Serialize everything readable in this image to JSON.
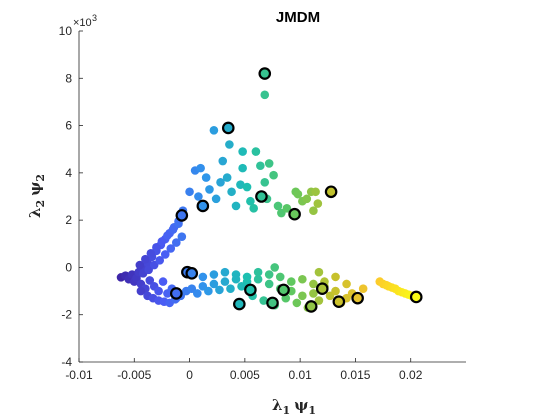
{
  "chart_data": {
    "type": "scatter",
    "title": "JMDM",
    "xlabel": "λ₁ ψ₁",
    "ylabel": "λ₂ ψ₂",
    "xlabel_parts": [
      "λ",
      "1",
      "ψ",
      "1"
    ],
    "ylabel_parts": [
      "λ",
      "2",
      "ψ",
      "2"
    ],
    "y_exponent_label": "×10",
    "y_exponent": "3",
    "xlim": [
      -0.01,
      0.025
    ],
    "ylim": [
      -4,
      10
    ],
    "xticks": [
      -0.01,
      -0.005,
      0,
      0.005,
      0.01,
      0.015,
      0.02
    ],
    "xtick_labels": [
      "-0.01",
      "-0.005",
      "0",
      "0.005",
      "0.01",
      "0.015",
      "0.02"
    ],
    "yticks": [
      -4,
      -2,
      0,
      2,
      4,
      6,
      8,
      10
    ],
    "ytick_labels": [
      "-4",
      "-2",
      "0",
      "2",
      "4",
      "6",
      "8",
      "10"
    ],
    "grid": false,
    "colormap": [
      "#3e26a8",
      "#4a5cf4",
      "#2f95eb",
      "#1dbfb0",
      "#5cc861",
      "#c2c12c",
      "#fdc52e",
      "#f9fb15"
    ],
    "points": [
      [
        -0.0062,
        -0.42
      ],
      [
        -0.0058,
        -0.35
      ],
      [
        -0.0055,
        -0.5
      ],
      [
        -0.0052,
        -0.3
      ],
      [
        -0.005,
        -0.6
      ],
      [
        -0.0048,
        -0.45
      ],
      [
        -0.0046,
        -0.2
      ],
      [
        -0.0044,
        -0.7
      ],
      [
        -0.0042,
        0.0
      ],
      [
        -0.004,
        -0.9
      ],
      [
        -0.0038,
        0.2
      ],
      [
        -0.0036,
        -0.55
      ],
      [
        -0.0034,
        0.45
      ],
      [
        -0.0032,
        -0.8
      ],
      [
        -0.003,
        0.7
      ],
      [
        -0.0028,
        -1.0
      ],
      [
        -0.0026,
        0.95
      ],
      [
        -0.0024,
        -0.6
      ],
      [
        -0.0022,
        1.2
      ],
      [
        -0.002,
        -1.1
      ],
      [
        -0.0018,
        1.45
      ],
      [
        -0.0016,
        -0.9
      ],
      [
        -0.0014,
        1.7
      ],
      [
        -0.0012,
        -1.3
      ],
      [
        -0.001,
        1.95
      ],
      [
        -0.0008,
        2.2
      ],
      [
        -0.0006,
        2.4
      ],
      [
        -0.0045,
        0.1
      ],
      [
        -0.004,
        0.35
      ],
      [
        -0.0035,
        0.6
      ],
      [
        -0.003,
        0.85
      ],
      [
        -0.0025,
        1.1
      ],
      [
        -0.002,
        1.35
      ],
      [
        -0.0015,
        1.6
      ],
      [
        -0.001,
        1.85
      ],
      [
        -0.0042,
        -0.25
      ],
      [
        -0.0037,
        -0.1
      ],
      [
        -0.0032,
        0.1
      ],
      [
        -0.0027,
        0.3
      ],
      [
        -0.0022,
        0.55
      ],
      [
        -0.0017,
        0.8
      ],
      [
        -0.0012,
        1.05
      ],
      [
        -0.0007,
        1.3
      ],
      [
        -0.0044,
        -1.0
      ],
      [
        -0.0038,
        -1.2
      ],
      [
        -0.0033,
        -1.3
      ],
      [
        -0.0028,
        -1.4
      ],
      [
        -0.0023,
        -1.45
      ],
      [
        -0.0018,
        -1.5
      ],
      [
        -0.0013,
        -1.35
      ],
      [
        -0.0008,
        -1.2
      ],
      [
        -0.0003,
        -1.0
      ],
      [
        0.0002,
        -0.9
      ],
      [
        0.0007,
        -1.1
      ],
      [
        0.0012,
        -0.8
      ],
      [
        0.0017,
        -1.0
      ],
      [
        0.0022,
        -0.7
      ],
      [
        0.0027,
        -0.95
      ],
      [
        0.0032,
        -0.6
      ],
      [
        0.0037,
        -0.9
      ],
      [
        0.0042,
        -0.3
      ],
      [
        0.0047,
        -0.8
      ],
      [
        0.0052,
        -0.4
      ],
      [
        0.0057,
        -1.2
      ],
      [
        0.0062,
        -0.5
      ],
      [
        0.0067,
        -1.4
      ],
      [
        0.0072,
        -0.7
      ],
      [
        0.0077,
        -1.6
      ],
      [
        0.0082,
        -0.9
      ],
      [
        0.0087,
        -1.3
      ],
      [
        0.0092,
        -1.0
      ],
      [
        0.0097,
        -1.5
      ],
      [
        0.0102,
        -1.2
      ],
      [
        0.0107,
        -1.7
      ],
      [
        0.0112,
        -1.1
      ],
      [
        0.0117,
        -1.4
      ],
      [
        0.0122,
        -0.8
      ],
      [
        0.0127,
        -1.2
      ],
      [
        0.0132,
        -1.0
      ],
      [
        0.0137,
        -1.5
      ],
      [
        0.0142,
        -1.3
      ],
      [
        0.0147,
        -1.1
      ],
      [
        0.0152,
        -1.3
      ],
      [
        0.0002,
        -0.3
      ],
      [
        0.0012,
        -0.4
      ],
      [
        0.0022,
        -0.3
      ],
      [
        0.0032,
        -0.2
      ],
      [
        0.0042,
        -0.5
      ],
      [
        0.0052,
        -0.6
      ],
      [
        0.0062,
        -0.2
      ],
      [
        0.0072,
        -0.3
      ],
      [
        0.0082,
        -0.4
      ],
      [
        0.0092,
        -0.6
      ],
      [
        0.0102,
        -0.5
      ],
      [
        0.0112,
        -0.7
      ],
      [
        0.0122,
        -0.6
      ],
      [
        0.0132,
        -0.4
      ],
      [
        0.0142,
        -0.7
      ],
      [
        0.0077,
        0.0
      ],
      [
        0.0117,
        -0.2
      ],
      [
        0.0157,
        -0.9
      ],
      [
        0.0172,
        -0.6
      ],
      [
        0.0175,
        -0.7
      ],
      [
        0.0178,
        -0.75
      ],
      [
        0.018,
        -0.8
      ],
      [
        0.0183,
        -0.85
      ],
      [
        0.0186,
        -0.9
      ],
      [
        0.0189,
        -1.0
      ],
      [
        0.0192,
        -1.05
      ],
      [
        0.0195,
        -1.1
      ],
      [
        0.0198,
        -1.15
      ],
      [
        0.0201,
        -1.2
      ],
      [
        0.0,
        3.2
      ],
      [
        0.0005,
        4.1
      ],
      [
        0.001,
        4.2
      ],
      [
        0.0015,
        3.8
      ],
      [
        0.0008,
        3.0
      ],
      [
        0.0018,
        3.3
      ],
      [
        0.0024,
        2.9
      ],
      [
        0.0028,
        3.6
      ],
      [
        0.003,
        4.5
      ],
      [
        0.0034,
        3.8
      ],
      [
        0.0038,
        3.2
      ],
      [
        0.0042,
        2.6
      ],
      [
        0.0046,
        3.5
      ],
      [
        0.0048,
        4.2
      ],
      [
        0.0052,
        3.4
      ],
      [
        0.0055,
        2.8
      ],
      [
        0.0058,
        2.5
      ],
      [
        0.006,
        4.9
      ],
      [
        0.0064,
        4.3
      ],
      [
        0.0068,
        3.6
      ],
      [
        0.007,
        2.9
      ],
      [
        0.0072,
        4.4
      ],
      [
        0.0076,
        3.9
      ],
      [
        0.008,
        2.6
      ],
      [
        0.0083,
        2.3
      ],
      [
        0.0088,
        2.5
      ],
      [
        0.0096,
        3.2
      ],
      [
        0.0098,
        3.1
      ],
      [
        0.0102,
        2.8
      ],
      [
        0.0106,
        2.9
      ],
      [
        0.011,
        3.2
      ],
      [
        0.0114,
        3.2
      ],
      [
        0.0116,
        2.7
      ],
      [
        0.0112,
        2.4
      ],
      [
        0.0022,
        5.8
      ],
      [
        0.0036,
        5.2
      ],
      [
        0.0048,
        4.9
      ],
      [
        0.0068,
        7.3
      ]
    ],
    "highlighted": [
      [
        0.0068,
        8.2
      ],
      [
        0.0035,
        5.9
      ],
      [
        0.0065,
        3.0
      ],
      [
        0.0012,
        2.6
      ],
      [
        -0.0007,
        2.2
      ],
      [
        0.0128,
        3.2
      ],
      [
        0.0095,
        2.25
      ],
      [
        -0.0002,
        -0.2
      ],
      [
        0.0002,
        -0.25
      ],
      [
        -0.0012,
        -1.1
      ],
      [
        0.0045,
        -1.55
      ],
      [
        0.0055,
        -0.95
      ],
      [
        0.0075,
        -1.5
      ],
      [
        0.0085,
        -0.95
      ],
      [
        0.011,
        -1.65
      ],
      [
        0.012,
        -0.9
      ],
      [
        0.0135,
        -1.45
      ],
      [
        0.0152,
        -1.3
      ],
      [
        0.0205,
        -1.25
      ]
    ]
  }
}
